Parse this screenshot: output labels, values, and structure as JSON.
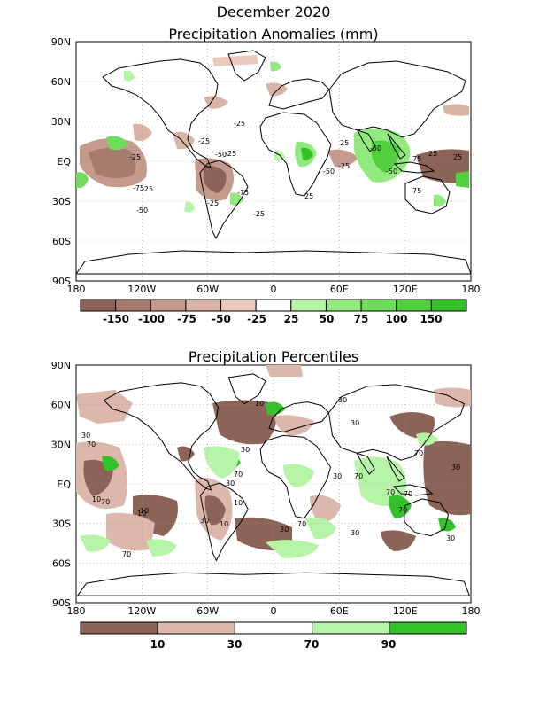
{
  "header": {
    "title": "December 2020"
  },
  "panels": [
    {
      "title": "Precipitation Anomalies (mm)",
      "lat_labels": [
        "90N",
        "60N",
        "30N",
        "EQ",
        "30S",
        "60S",
        "90S"
      ],
      "lon_labels": [
        "180",
        "120W",
        "60W",
        "0",
        "60E",
        "120E",
        "180"
      ],
      "colorbar": {
        "labels": [
          "-150",
          "-100",
          "-75",
          "-50",
          "-25",
          "25",
          "50",
          "75",
          "100",
          "150"
        ],
        "colors": [
          "#8b6457",
          "#a77b6d",
          "#c49a8d",
          "#d9b3a6",
          "#ecc9bd",
          "#ffffff",
          "#b6f5a8",
          "#92ea7f",
          "#6fdd5c",
          "#4fd03c",
          "#33c22a"
        ]
      },
      "contour_labels": [
        "-25",
        "-25",
        "-50",
        "-75",
        "-25",
        "-50",
        "-75",
        "-25",
        "-50",
        "25",
        "75",
        "-25",
        "-50",
        "25",
        "-25",
        "-50",
        "75",
        "25",
        "-25",
        "25",
        "-25"
      ]
    },
    {
      "title": "Precipitation Percentiles",
      "lat_labels": [
        "90N",
        "60N",
        "30N",
        "EQ",
        "30S",
        "60S",
        "90S"
      ],
      "lon_labels": [
        "180",
        "120W",
        "60W",
        "0",
        "60E",
        "120E",
        "180"
      ],
      "colorbar": {
        "labels": [
          "10",
          "30",
          "70",
          "90"
        ],
        "colors": [
          "#8b6457",
          "#dcb7ab",
          "#ffffff",
          "#b6f5a8",
          "#33c22a"
        ]
      },
      "contour_labels": [
        "10",
        "30",
        "30",
        "70",
        "10",
        "70",
        "30",
        "10",
        "30",
        "10",
        "70",
        "30",
        "70",
        "30",
        "70",
        "10",
        "30",
        "70",
        "30",
        "70",
        "70",
        "30",
        "70",
        "10",
        "70",
        "30",
        "30"
      ]
    }
  ]
}
